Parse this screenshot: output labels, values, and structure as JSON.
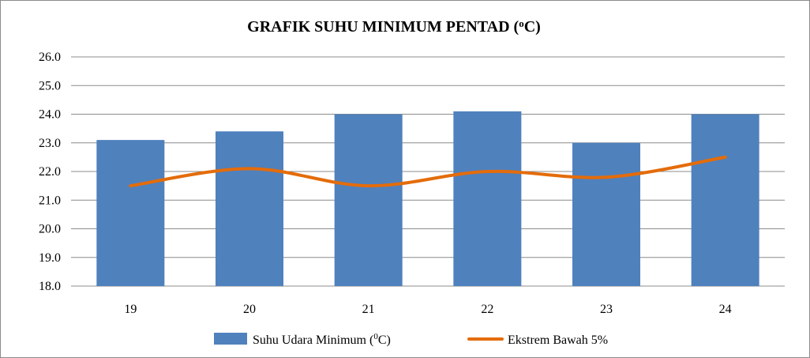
{
  "chart_data": {
    "type": "bar",
    "title_main": "GRAFIK SUHU MINIMUM PENTAD (",
    "title_degree": "o",
    "title_unit": "C)",
    "categories": [
      "19",
      "20",
      "21",
      "22",
      "23",
      "24"
    ],
    "ylim": [
      18.0,
      26.0
    ],
    "yticks": [
      "18.0",
      "19.0",
      "20.0",
      "21.0",
      "22.0",
      "23.0",
      "24.0",
      "25.0",
      "26.0"
    ],
    "grid": true,
    "legend_position": "bottom",
    "series": [
      {
        "type": "bar",
        "legend_main": "Suhu Udara Minimum (",
        "legend_sup": "0",
        "legend_tail": "C)",
        "color": "#4f81bd",
        "values": [
          23.1,
          23.4,
          24.0,
          24.1,
          23.0,
          24.0
        ]
      },
      {
        "type": "line",
        "name": "Ekstrem Bawah  5%",
        "color": "#e46c0a",
        "smooth": true,
        "values": [
          21.5,
          22.1,
          21.5,
          22.0,
          21.8,
          22.5
        ]
      }
    ]
  }
}
